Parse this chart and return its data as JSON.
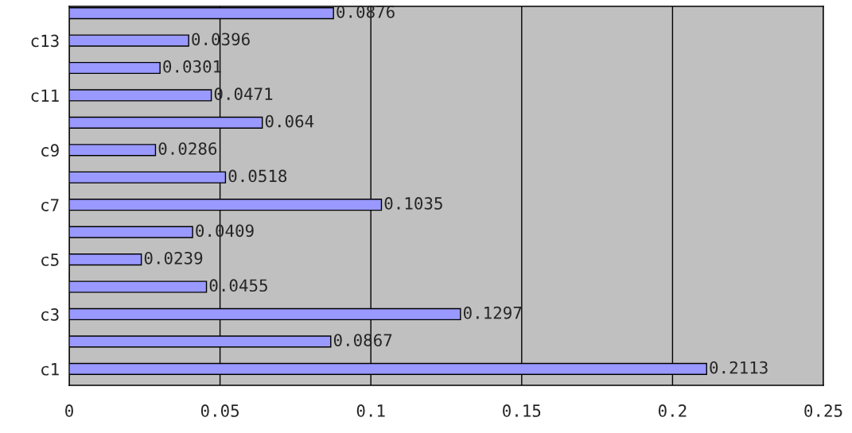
{
  "chart_data": {
    "type": "bar",
    "orientation": "horizontal",
    "categories": [
      null,
      "c13",
      null,
      "c11",
      null,
      "c9",
      null,
      "c7",
      null,
      "c5",
      null,
      "c3",
      null,
      "c1"
    ],
    "values": [
      0.0876,
      0.0396,
      0.0301,
      0.0471,
      0.064,
      0.0286,
      0.0518,
      0.1035,
      0.0409,
      0.0239,
      0.0455,
      0.1297,
      0.0867,
      0.2113
    ],
    "color": "#9999ff",
    "xlim": [
      0,
      0.25
    ],
    "xticks": [
      0,
      0.05,
      0.1,
      0.15,
      0.2,
      0.25
    ],
    "grid": "x",
    "data_labels": true,
    "legend": false
  }
}
